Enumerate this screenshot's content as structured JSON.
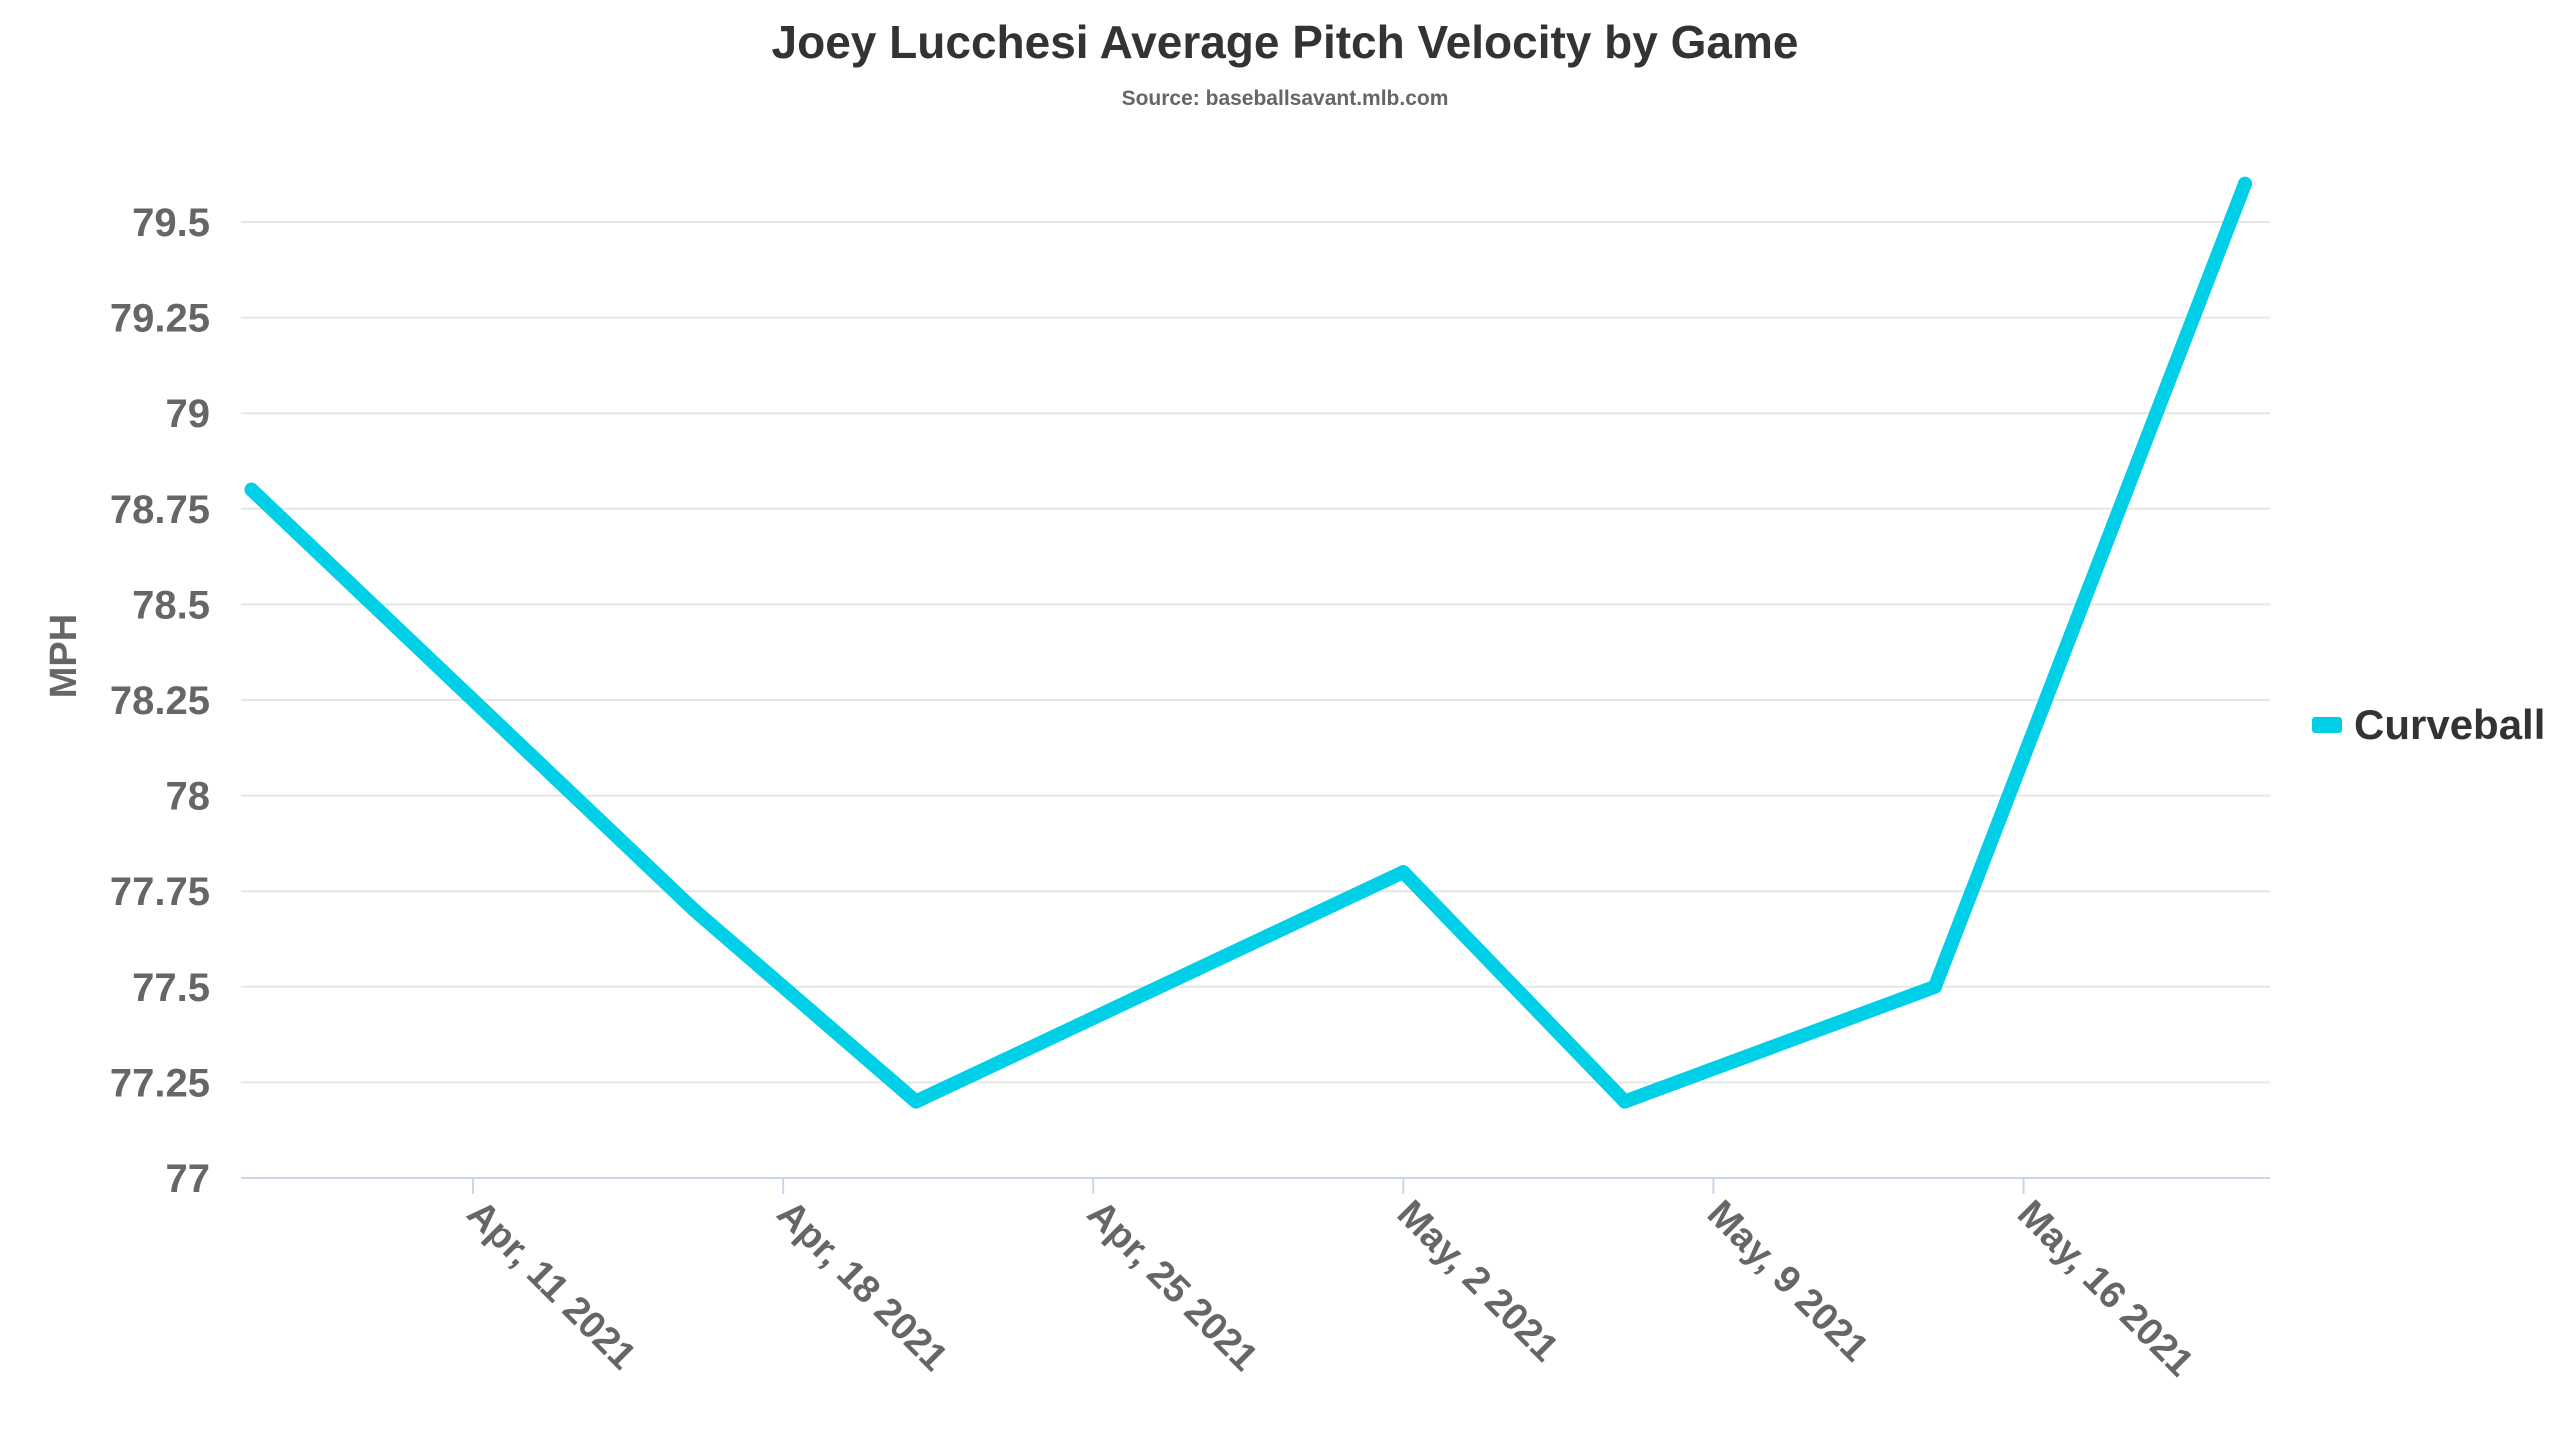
{
  "chart_data": {
    "type": "line",
    "title": "Joey Lucchesi Average Pitch Velocity by Game",
    "subtitle": "Source: baseballsavant.mlb.com",
    "xlabel": "",
    "ylabel": "MPH",
    "ylim": [
      77,
      79.5
    ],
    "yticks": [
      "77",
      "77.25",
      "77.5",
      "77.75",
      "78",
      "78.25",
      "78.5",
      "78.75",
      "79",
      "79.25",
      "79.5"
    ],
    "ytick_values": [
      77,
      77.25,
      77.5,
      77.75,
      78,
      78.25,
      78.5,
      78.75,
      79,
      79.25,
      79.5
    ],
    "xticks": [
      "Apr, 11 2021",
      "Apr, 18 2021",
      "Apr, 25 2021",
      "May, 2 2021",
      "May, 9 2021",
      "May, 16 2021"
    ],
    "xtick_days": [
      0,
      7,
      14,
      21,
      28,
      35
    ],
    "grid": true,
    "legend_position": "right",
    "series": [
      {
        "name": "Curveball",
        "color": "#00cfe8",
        "x": [
          "2021-04-06",
          "2021-04-16",
          "2021-04-21",
          "2021-05-02",
          "2021-05-07",
          "2021-05-14",
          "2021-05-21"
        ],
        "x_days": [
          -5,
          5,
          10,
          21,
          26,
          33,
          40
        ],
        "values": [
          78.8,
          77.7,
          77.2,
          77.8,
          77.2,
          77.5,
          79.6
        ]
      }
    ]
  }
}
